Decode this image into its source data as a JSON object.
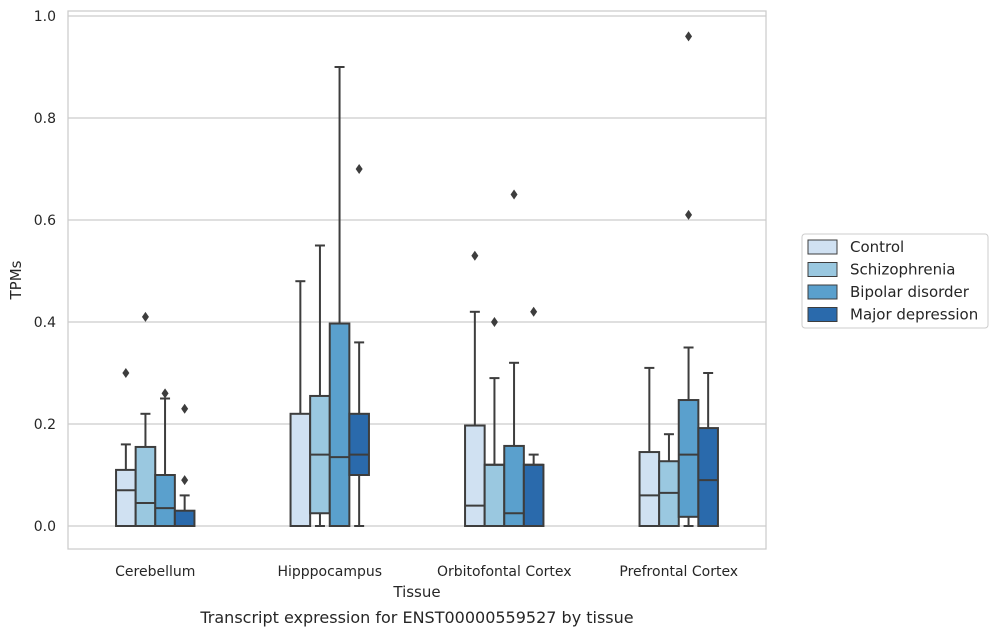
{
  "chart_data": {
    "type": "box",
    "title": "",
    "caption": "Transcript expression for ENST00000559527 by tissue",
    "xlabel": "Tissue",
    "ylabel": "TPMs",
    "ylim": [
      -0.045,
      1.01
    ],
    "yticks": [
      0.0,
      0.2,
      0.4,
      0.6,
      0.8,
      1.0
    ],
    "ytick_labels": [
      "0.0",
      "0.2",
      "0.4",
      "0.6",
      "0.8",
      "1.0"
    ],
    "grid": "horizontal",
    "legend_position": "right",
    "categories": [
      "Cerebellum",
      "Hipppocampus",
      "Orbitofontal Cortex",
      "Prefrontal Cortex"
    ],
    "series": [
      {
        "name": "Control",
        "color": "#d0e1f2",
        "boxes": [
          {
            "whislo": 0.0,
            "q1": 0.0,
            "med": 0.07,
            "q3": 0.11,
            "whishi": 0.16,
            "fliers": [
              0.3
            ]
          },
          {
            "whislo": 0.0,
            "q1": 0.0,
            "med": 0.0,
            "q3": 0.22,
            "whishi": 0.48,
            "fliers": []
          },
          {
            "whislo": 0.0,
            "q1": 0.0,
            "med": 0.04,
            "q3": 0.197,
            "whishi": 0.42,
            "fliers": [
              0.53
            ]
          },
          {
            "whislo": 0.0,
            "q1": 0.0,
            "med": 0.06,
            "q3": 0.145,
            "whishi": 0.31,
            "fliers": []
          }
        ]
      },
      {
        "name": "Schizophrenia",
        "color": "#9ac8e0",
        "boxes": [
          {
            "whislo": 0.0,
            "q1": 0.0,
            "med": 0.045,
            "q3": 0.155,
            "whishi": 0.22,
            "fliers": [
              0.41
            ]
          },
          {
            "whislo": 0.0,
            "q1": 0.025,
            "med": 0.14,
            "q3": 0.255,
            "whishi": 0.55,
            "fliers": []
          },
          {
            "whislo": 0.0,
            "q1": 0.0,
            "med": 0.12,
            "q3": 0.12,
            "whishi": 0.29,
            "fliers": [
              0.4
            ]
          },
          {
            "whislo": 0.0,
            "q1": 0.0,
            "med": 0.065,
            "q3": 0.127,
            "whishi": 0.18,
            "fliers": []
          }
        ]
      },
      {
        "name": "Bipolar disorder",
        "color": "#5aa0cd",
        "boxes": [
          {
            "whislo": 0.0,
            "q1": 0.0,
            "med": 0.035,
            "q3": 0.1,
            "whishi": 0.25,
            "fliers": [
              0.26
            ]
          },
          {
            "whislo": 0.0,
            "q1": 0.0,
            "med": 0.135,
            "q3": 0.397,
            "whishi": 0.9,
            "fliers": []
          },
          {
            "whislo": 0.0,
            "q1": 0.0,
            "med": 0.025,
            "q3": 0.157,
            "whishi": 0.32,
            "fliers": [
              0.65
            ]
          },
          {
            "whislo": 0.0,
            "q1": 0.018,
            "med": 0.14,
            "q3": 0.247,
            "whishi": 0.35,
            "fliers": [
              0.96,
              0.61
            ]
          }
        ]
      },
      {
        "name": "Major depression",
        "color": "#2a6aac",
        "boxes": [
          {
            "whislo": 0.0,
            "q1": 0.0,
            "med": 0.0,
            "q3": 0.03,
            "whishi": 0.06,
            "fliers": [
              0.23,
              0.09
            ]
          },
          {
            "whislo": 0.0,
            "q1": 0.1,
            "med": 0.14,
            "q3": 0.22,
            "whishi": 0.36,
            "fliers": [
              0.7
            ]
          },
          {
            "whislo": 0.0,
            "q1": 0.0,
            "med": 0.12,
            "q3": 0.12,
            "whishi": 0.14,
            "fliers": [
              0.42
            ]
          },
          {
            "whislo": 0.0,
            "q1": 0.0,
            "med": 0.09,
            "q3": 0.192,
            "whishi": 0.3,
            "fliers": []
          }
        ]
      }
    ]
  }
}
